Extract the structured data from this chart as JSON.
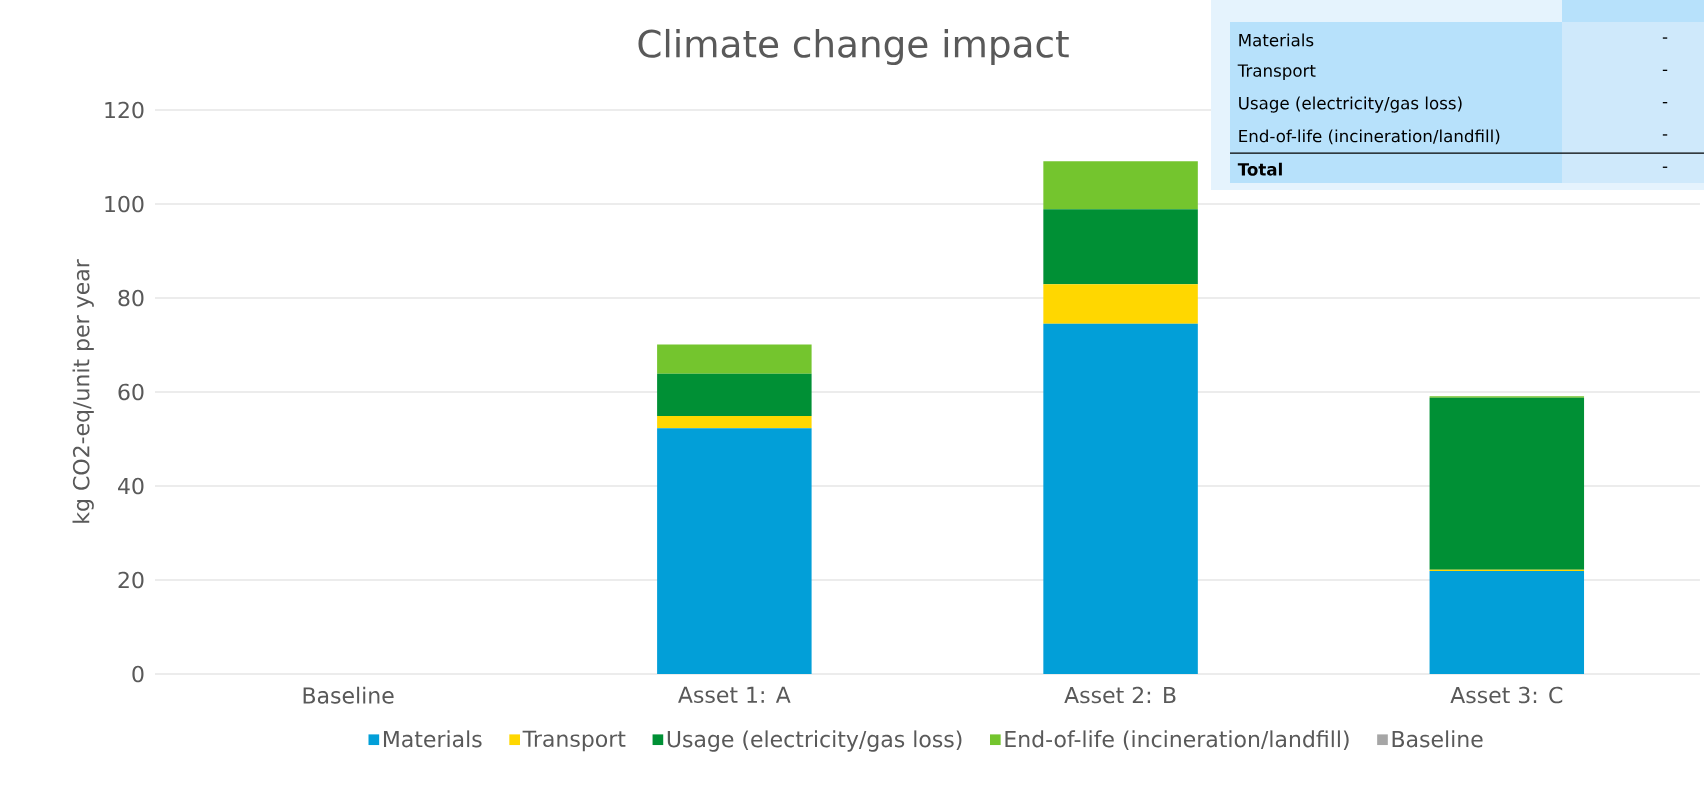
{
  "chart_data": {
    "type": "bar",
    "title": "Climate change impact",
    "ylabel": "kg CO2-eq/unit per year",
    "categories": [
      "Baseline",
      "Asset 1: A",
      "Asset 2: B",
      "Asset 3: C"
    ],
    "stacked": true,
    "series": [
      {
        "name": "Materials",
        "color": "#029fd8",
        "values": [
          null,
          52.3,
          74.5,
          21.9
        ]
      },
      {
        "name": "Transport",
        "color": "#ffd700",
        "values": [
          null,
          2.6,
          8.4,
          0.3
        ]
      },
      {
        "name": "Usage (electricity/gas loss)",
        "color": "#009035",
        "values": [
          null,
          9.0,
          16.0,
          36.6
        ]
      },
      {
        "name": "End-of-life (incineration/landfill)",
        "color": "#74c52e",
        "values": [
          null,
          6.2,
          10.2,
          0.3
        ]
      },
      {
        "name": "Baseline",
        "color": "#a6a6a6",
        "values": [
          null,
          null,
          null,
          null
        ]
      }
    ],
    "ylim": [
      0,
      120
    ],
    "yticks": [
      0,
      20,
      40,
      60,
      80,
      100,
      120
    ],
    "grid": "y",
    "legend": "bottom",
    "annotations": [
      "Materials",
      "-",
      "Transport",
      "-",
      "Usage (electricity/gas loss)",
      "-",
      "End-of-life (incineration/landfill)",
      "-",
      "Total",
      "-"
    ]
  }
}
